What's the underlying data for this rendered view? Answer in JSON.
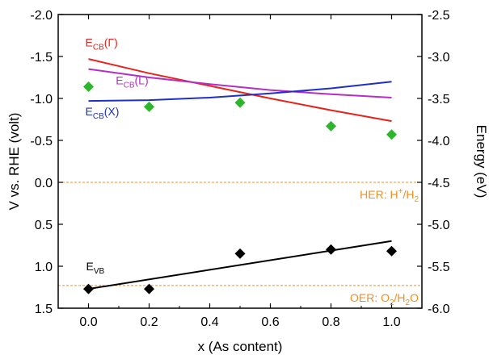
{
  "chart_data": {
    "type": "line",
    "xlabel": "x (As content)",
    "ylabel_left": "V vs. RHE (volt)",
    "ylabel_right": "Energy (eV)",
    "xlim": [
      -0.1,
      1.1
    ],
    "ylim_left": [
      1.5,
      -2.0
    ],
    "ylim_right": [
      -6.0,
      -2.5
    ],
    "left_axis_inverted": true,
    "x_ticks": [
      "0.0",
      "0.2",
      "0.4",
      "0.6",
      "0.8",
      "1.0"
    ],
    "x_tick_values": [
      0.0,
      0.2,
      0.4,
      0.6,
      0.8,
      1.0
    ],
    "left_ticks": [
      "-2.0",
      "-1.5",
      "-1.0",
      "-0.5",
      "0.0",
      "0.5",
      "1.0",
      "1.5"
    ],
    "left_tick_values": [
      -2.0,
      -1.5,
      -1.0,
      -0.5,
      0.0,
      0.5,
      1.0,
      1.5
    ],
    "right_ticks": [
      "-2.5",
      "-3.0",
      "-3.5",
      "-4.0",
      "-4.5",
      "-5.0",
      "-5.5",
      "-6.0"
    ],
    "right_tick_values": [
      -2.5,
      -3.0,
      -3.5,
      -4.0,
      -4.5,
      -5.0,
      -5.5,
      -6.0
    ],
    "grid": false,
    "lines": [
      {
        "id": "ecb-gamma",
        "label_main": "E",
        "label_sub": "CB",
        "label_suffix": "(Γ)",
        "color": "#e8221b",
        "x": [
          0.0,
          0.2,
          0.4,
          0.6,
          0.8,
          1.0
        ],
        "y": [
          -1.47,
          -1.3,
          -1.15,
          -1.0,
          -0.86,
          -0.73
        ]
      },
      {
        "id": "ecb-l",
        "label_main": "E",
        "label_sub": "CB",
        "label_suffix": "(L)",
        "color": "#b32fc4",
        "x": [
          0.0,
          0.2,
          0.4,
          0.6,
          0.8,
          1.0
        ],
        "y": [
          -1.35,
          -1.25,
          -1.17,
          -1.1,
          -1.05,
          -1.01
        ]
      },
      {
        "id": "ecb-x",
        "label_main": "E",
        "label_sub": "CB",
        "label_suffix": "(X)",
        "color": "#1f2fc8",
        "x": [
          0.0,
          0.2,
          0.4,
          0.6,
          0.8,
          1.0
        ],
        "y": [
          -0.97,
          -0.98,
          -1.01,
          -1.06,
          -1.12,
          -1.2
        ]
      },
      {
        "id": "evb",
        "label_main": "E",
        "label_sub": "VB",
        "label_suffix": "",
        "color": "#000000",
        "x": [
          0.0,
          1.0
        ],
        "y": [
          1.27,
          0.7
        ]
      }
    ],
    "scatter": [
      {
        "id": "ecb-exp",
        "color": "#2db52d",
        "marker": "diamond",
        "x": [
          0.0,
          0.2,
          0.5,
          0.8,
          1.0
        ],
        "y": [
          -1.14,
          -0.9,
          -0.95,
          -0.67,
          -0.57
        ]
      },
      {
        "id": "evb-exp",
        "color": "#000000",
        "marker": "diamond",
        "x": [
          0.0,
          0.2,
          0.5,
          0.8,
          1.0
        ],
        "y": [
          1.27,
          1.27,
          0.85,
          0.8,
          0.82
        ]
      }
    ],
    "reference_lines": [
      {
        "id": "her",
        "y": 0.0,
        "color": "#f0901e",
        "label_parts": [
          "HER: H",
          "+",
          "/H",
          "2"
        ],
        "label_styles": [
          "normal",
          "sup",
          "normal",
          "sub"
        ]
      },
      {
        "id": "oer",
        "y": 1.23,
        "color": "#f0901e",
        "label_parts": [
          "OER: O",
          "2",
          "/H",
          "2",
          "O"
        ],
        "label_styles": [
          "normal",
          "sub",
          "normal",
          "sub",
          "normal"
        ]
      }
    ]
  }
}
